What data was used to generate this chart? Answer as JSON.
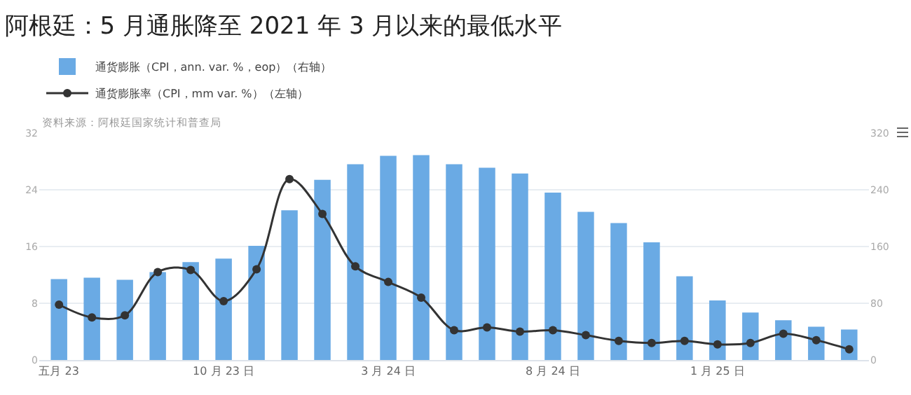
{
  "chart_data": {
    "type": "bar",
    "title": "阿根廷：5 月通胀降至 2021 年 3 月以来的最低水平",
    "categories": [
      "五月 23",
      null,
      null,
      null,
      null,
      "10 月 23 日",
      null,
      null,
      null,
      null,
      "3 月 24 日",
      null,
      null,
      null,
      null,
      "8 月 24 日",
      null,
      null,
      null,
      null,
      "1 月 25 日",
      null,
      null,
      null,
      null
    ],
    "series": [
      {
        "name": "通货膨胀（CPI，ann. var. %，eop）（右轴）",
        "color": "#6aaae4",
        "axis": "y2",
        "values": [
          114,
          116,
          113,
          124,
          138,
          143,
          161,
          211,
          254,
          276,
          288,
          289,
          276,
          271,
          263,
          236,
          209,
          193,
          166,
          118,
          84,
          67,
          56,
          47,
          43
        ]
      },
      {
        "name": "通货膨胀率（CPI，mm var. %）（左轴）",
        "type": "line",
        "color": "#333333",
        "marker": "circle",
        "line_style": "solid",
        "values": [
          7.8,
          6.0,
          6.3,
          12.4,
          12.7,
          8.3,
          12.8,
          25.5,
          20.6,
          13.2,
          11.0,
          8.8,
          4.2,
          4.6,
          4.0,
          4.2,
          3.5,
          2.7,
          2.4,
          2.7,
          2.2,
          2.4,
          3.7,
          2.8,
          1.5
        ]
      }
    ],
    "ylim": [
      0,
      32
    ],
    "yticks": [
      0,
      8,
      16,
      24,
      32
    ],
    "y2lim": [
      0,
      320
    ],
    "y2ticks": [
      0,
      80,
      160,
      240,
      320
    ],
    "grid": "y",
    "legend": "top left",
    "annotations": [
      "资料来源：阿根廷国家统计和普查局"
    ]
  }
}
